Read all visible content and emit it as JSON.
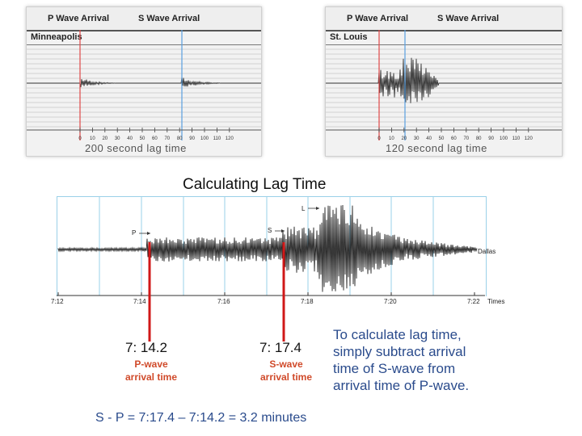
{
  "top_left_panel": {
    "p_label": "P Wave Arrival",
    "s_label": "S Wave Arrival",
    "city": "Minneapolis",
    "ticks": [
      "0",
      "10",
      "20",
      "30",
      "40",
      "50",
      "60",
      "70",
      "80",
      "90",
      "100",
      "110",
      "120"
    ],
    "caption": "200 second lag time"
  },
  "top_right_panel": {
    "p_label": "P Wave Arrival",
    "s_label": "S Wave Arrival",
    "city": "St. Louis",
    "ticks": [
      "0",
      "10",
      "20",
      "30",
      "40",
      "50",
      "60",
      "70",
      "80",
      "90",
      "100",
      "110",
      "120"
    ],
    "caption": "120 second lag time"
  },
  "main_title": "Calculating Lag Time",
  "seismogram": {
    "marker_p": "P",
    "marker_s": "S",
    "marker_l": "L",
    "station": "Dallas",
    "time_ticks": [
      "7:12",
      "7:14",
      "7:16",
      "7:18",
      "7:20",
      "7:22"
    ],
    "times_label": "Times"
  },
  "p_wave": {
    "time": "7: 14.2",
    "label_line1": "P-wave",
    "label_line2": "arrival time"
  },
  "s_wave": {
    "time": "7: 17.4",
    "label_line1": "S-wave",
    "label_line2": "arrival time"
  },
  "explanation": [
    "To calculate lag time,",
    "simply subtract arrival",
    "time of S-wave from",
    "arrival time of P-wave."
  ],
  "formula": "S - P = 7:17.4 – 7:14.2 = 3.2 minutes",
  "colors": {
    "p_line": "#e04848",
    "s_line": "#5aa0e0",
    "arrival_red": "#d01818",
    "explain_blue": "#2a4b8c",
    "arrival_label": "#d04a2a"
  }
}
